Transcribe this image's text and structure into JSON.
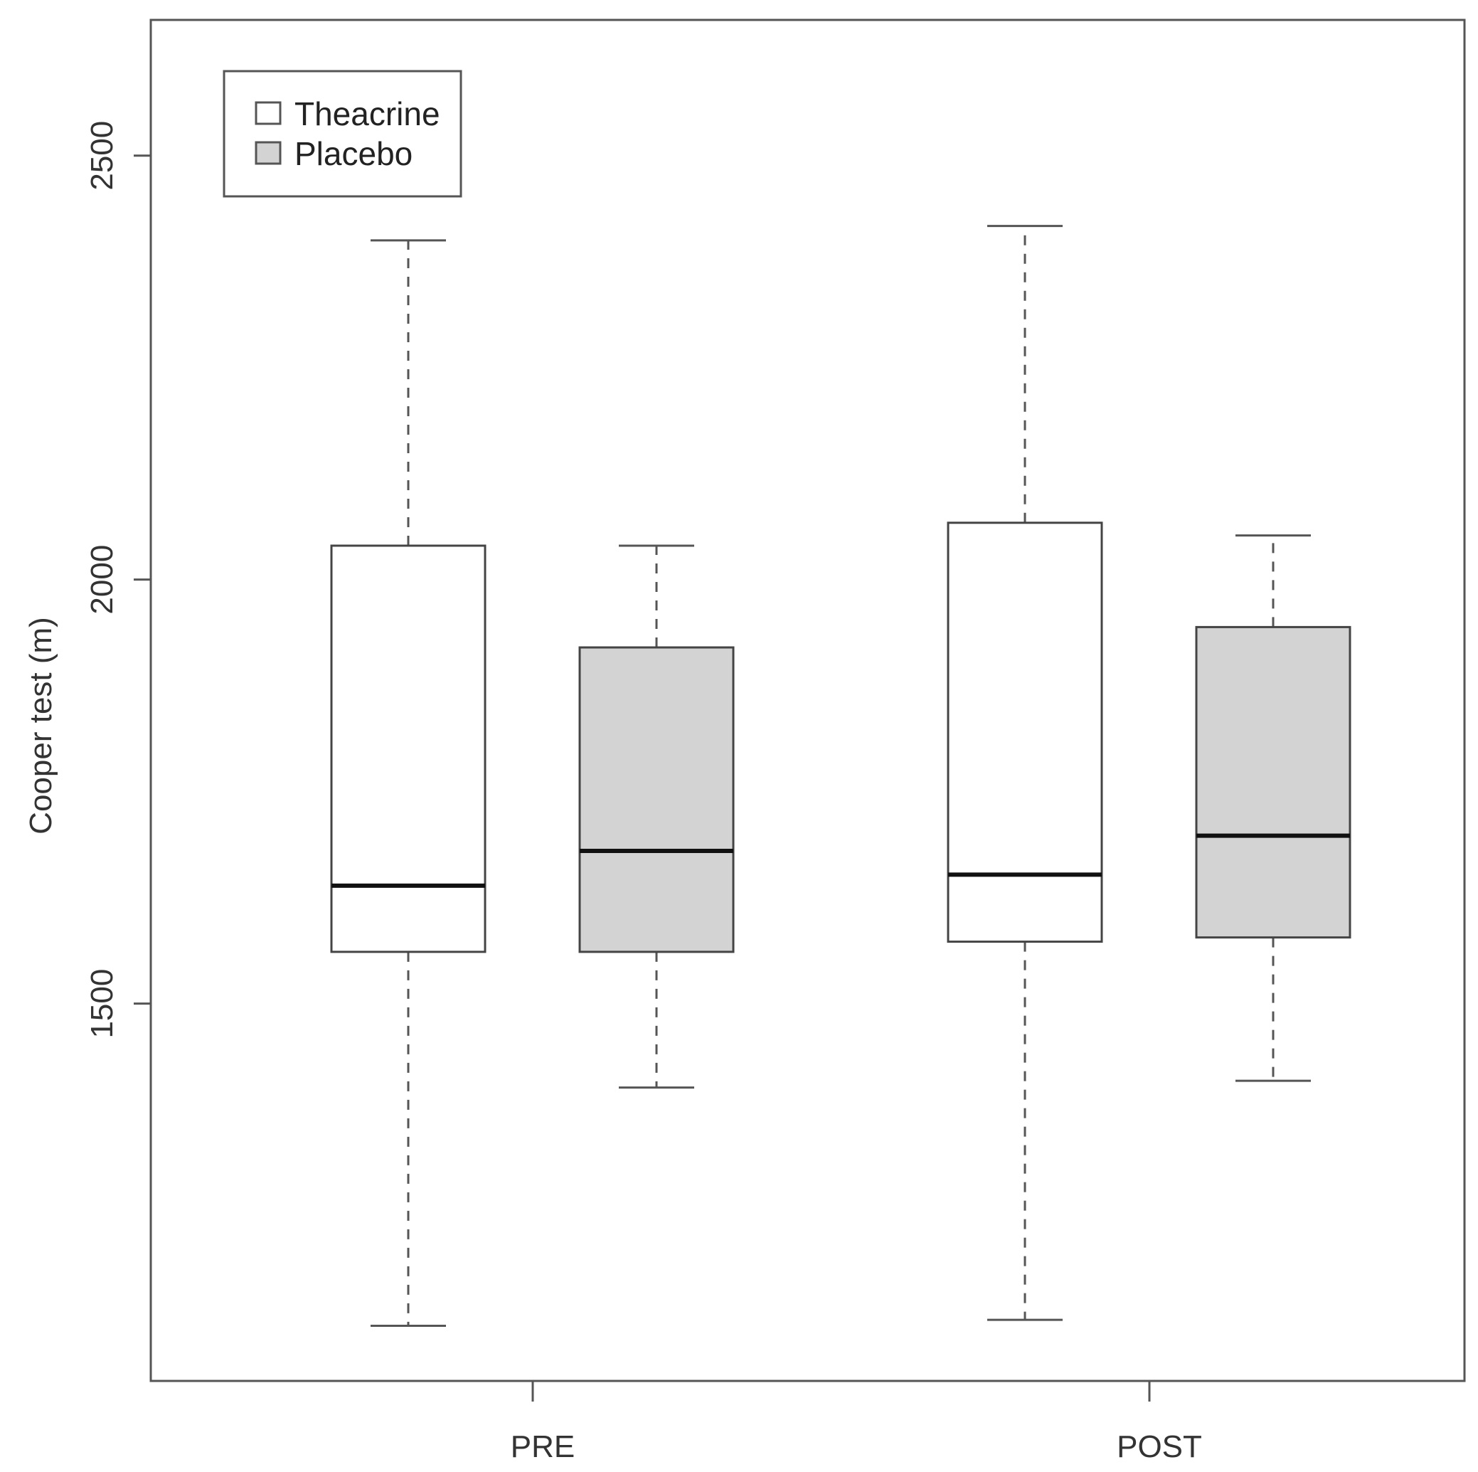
{
  "chart_data": {
    "type": "boxplot",
    "ylabel": "Cooper test (m)",
    "xlabel": "",
    "ylim": [
      1055,
      2660
    ],
    "yticks": [
      "1500",
      "2000",
      "2500"
    ],
    "categories": [
      "PRE",
      "POST"
    ],
    "legend": {
      "position": "top-left",
      "entries": [
        {
          "label": "Theacrine",
          "color": "#ffffff"
        },
        {
          "label": "Placebo",
          "color": "#d3d3d3"
        }
      ]
    },
    "series": [
      {
        "name": "Theacrine",
        "color": "#ffffff",
        "boxes": [
          {
            "category": "PRE",
            "min": 1120,
            "q1": 1561,
            "median": 1639,
            "q3": 2040,
            "max": 2400
          },
          {
            "category": "POST",
            "min": 1127,
            "q1": 1573,
            "median": 1652,
            "q3": 2067,
            "max": 2417
          }
        ]
      },
      {
        "name": "Placebo",
        "color": "#d3d3d3",
        "boxes": [
          {
            "category": "PRE",
            "min": 1401,
            "q1": 1561,
            "median": 1680,
            "q3": 1920,
            "max": 2040
          },
          {
            "category": "POST",
            "min": 1409,
            "q1": 1578,
            "median": 1698,
            "q3": 1944,
            "max": 2052
          }
        ]
      }
    ],
    "grid": false
  }
}
